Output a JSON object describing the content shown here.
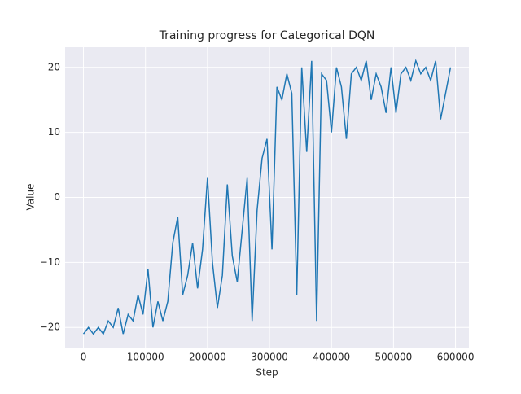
{
  "chart_data": {
    "type": "line",
    "title": "Training progress for Categorical DQN",
    "x_label": "Step",
    "y_label": "Value",
    "x": [
      0,
      8000,
      16000,
      24000,
      32000,
      40000,
      48000,
      56000,
      64000,
      72000,
      80000,
      88000,
      96000,
      104000,
      112000,
      120000,
      128000,
      136000,
      144000,
      152000,
      160000,
      168000,
      176000,
      184000,
      192000,
      200000,
      208000,
      216000,
      224000,
      232000,
      240000,
      248000,
      256000,
      264000,
      272000,
      280000,
      288000,
      296000,
      304000,
      312000,
      320000,
      328000,
      336000,
      344000,
      352000,
      360000,
      368000,
      376000,
      384000,
      392000,
      400000,
      408000,
      416000,
      424000,
      432000,
      440000,
      448000,
      456000,
      464000,
      472000,
      480000,
      488000,
      496000,
      504000,
      512000,
      520000,
      528000,
      536000,
      544000,
      552000,
      560000,
      568000,
      576000,
      584000,
      592000
    ],
    "series": [
      {
        "name": "Value",
        "color": "#1f77b4",
        "values": [
          -21,
          -20,
          -21,
          -20,
          -21,
          -19,
          -20,
          -17,
          -21,
          -18,
          -19,
          -15,
          -18,
          -11,
          -20,
          -16,
          -19,
          -16,
          -7,
          -3,
          -15,
          -12,
          -7,
          -14,
          -8,
          3,
          -10,
          -17,
          -12,
          2,
          -9,
          -13,
          -5,
          3,
          -19,
          -2,
          6,
          9,
          -8,
          17,
          15,
          19,
          16,
          -15,
          20,
          7,
          21,
          -19,
          19,
          18,
          10,
          20,
          17,
          9,
          19,
          20,
          18,
          21,
          15,
          19,
          17,
          13,
          20,
          13,
          19,
          20,
          18,
          21,
          19,
          20,
          18,
          21,
          12,
          16,
          20
        ]
      }
    ],
    "xlim": [
      -29600,
      621600
    ],
    "ylim": [
      -23.1,
      23.1
    ],
    "xticks": [
      0,
      100000,
      200000,
      300000,
      400000,
      500000,
      600000
    ],
    "yticks": [
      {
        "value": -20,
        "label": "−20"
      },
      {
        "value": -10,
        "label": "−10"
      },
      0,
      10,
      20
    ],
    "grid": true
  }
}
